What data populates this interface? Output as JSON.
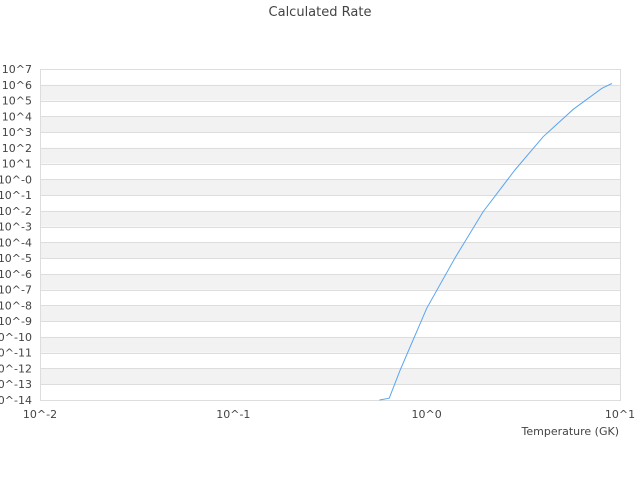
{
  "chart_data": {
    "type": "line",
    "title": "Calculated Rate",
    "xlabel": "Temperature (GK)",
    "ylabel": "",
    "x_scale": "log",
    "y_scale": "log",
    "xlim": [
      0.01,
      10
    ],
    "ylim": [
      1e-14,
      10000000.0
    ],
    "grid": true,
    "x_ticks": [
      "10^-2",
      "10^-1",
      "10^0",
      "10^1"
    ],
    "y_ticks": [
      "10^7",
      "10^6",
      "10^5",
      "10^4",
      "10^3",
      "10^2",
      "10^1",
      "10^-0",
      "10^-1",
      "10^-2",
      "10^-3",
      "10^-4",
      "10^-5",
      "10^-6",
      "10^-7",
      "10^-8",
      "10^-9",
      "10^-10",
      "10^-11",
      "10^-12",
      "10^-13",
      "10^-14"
    ],
    "series": [
      {
        "color": "#5aa6f0",
        "x": [
          0.57,
          0.64,
          0.73,
          1.0,
          1.4,
          1.96,
          2.86,
          4.0,
          5.74,
          8.06,
          9.08
        ],
        "y": [
          1e-14,
          1.3e-14,
          8e-13,
          6.6e-09,
          1e-05,
          0.009,
          3.9,
          500,
          28000.0,
          600000.0,
          1200000.0
        ]
      }
    ]
  }
}
